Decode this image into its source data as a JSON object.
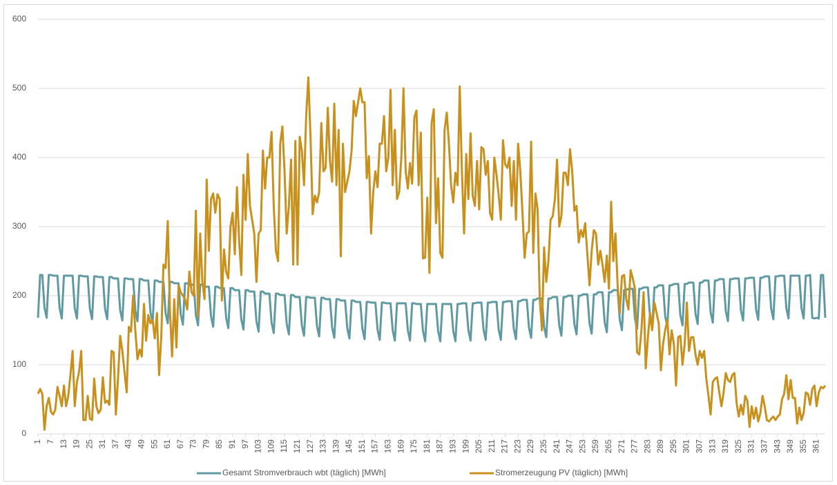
{
  "chart_data": {
    "type": "line",
    "x": [
      1,
      2,
      3,
      4,
      5,
      6,
      7,
      8,
      9,
      10,
      11,
      12,
      13,
      14,
      15,
      16,
      17,
      18,
      19,
      20,
      21,
      22,
      23,
      24,
      25,
      26,
      27,
      28,
      29,
      30,
      31,
      32,
      33,
      34,
      35,
      36,
      37,
      38,
      39,
      40,
      41,
      42,
      43,
      44,
      45,
      46,
      47,
      48,
      49,
      50,
      51,
      52,
      53,
      54,
      55,
      56,
      57,
      58,
      59,
      60,
      61,
      62,
      63,
      64,
      65,
      66,
      67,
      68,
      69,
      70,
      71,
      72,
      73,
      74,
      75,
      76,
      77,
      78,
      79,
      80,
      81,
      82,
      83,
      84,
      85,
      86,
      87,
      88,
      89,
      90,
      91,
      92,
      93,
      94,
      95,
      96,
      97,
      98,
      99,
      100,
      101,
      102,
      103,
      104,
      105,
      106,
      107,
      108,
      109,
      110,
      111,
      112,
      113,
      114,
      115,
      116,
      117,
      118,
      119,
      120,
      121,
      122,
      123,
      124,
      125,
      126,
      127,
      128,
      129,
      130,
      131,
      132,
      133,
      134,
      135,
      136,
      137,
      138,
      139,
      140,
      141,
      142,
      143,
      144,
      145,
      146,
      147,
      148,
      149,
      150,
      151,
      152,
      153,
      154,
      155,
      156,
      157,
      158,
      159,
      160,
      161,
      162,
      163,
      164,
      165,
      166,
      167,
      168,
      169,
      170,
      171,
      172,
      173,
      174,
      175,
      176,
      177,
      178,
      179,
      180,
      181,
      182,
      183,
      184,
      185,
      186,
      187,
      188,
      189,
      190,
      191,
      192,
      193,
      194,
      195,
      196,
      197,
      198,
      199,
      200,
      201,
      202,
      203,
      204,
      205,
      206,
      207,
      208,
      209,
      210,
      211,
      212,
      213,
      214,
      215,
      216,
      217,
      218,
      219,
      220,
      221,
      222,
      223,
      224,
      225,
      226,
      227,
      228,
      229,
      230,
      231,
      232,
      233,
      234,
      235,
      236,
      237,
      238,
      239,
      240,
      241,
      242,
      243,
      244,
      245,
      246,
      247,
      248,
      249,
      250,
      251,
      252,
      253,
      254,
      255,
      256,
      257,
      258,
      259,
      260,
      261,
      262,
      263,
      264,
      265,
      266,
      267,
      268,
      269,
      270,
      271,
      272,
      273,
      274,
      275,
      276,
      277,
      278,
      279,
      280,
      281,
      282,
      283,
      284,
      285,
      286,
      287,
      288,
      289,
      290,
      291,
      292,
      293,
      294,
      295,
      296,
      297,
      298,
      299,
      300,
      301,
      302,
      303,
      304,
      305,
      306,
      307,
      308,
      309,
      310,
      311,
      312,
      313,
      314,
      315,
      316,
      317,
      318,
      319,
      320,
      321,
      322,
      323,
      324,
      325,
      326,
      327,
      328,
      329,
      330,
      331,
      332,
      333,
      334,
      335,
      336,
      337,
      338,
      339,
      340,
      341,
      342,
      343,
      344,
      345,
      346,
      347,
      348,
      349,
      350,
      351,
      352,
      353,
      354,
      355,
      356,
      357,
      358,
      359,
      360,
      361,
      362,
      363,
      364,
      365
    ],
    "xlim": [
      1,
      365
    ],
    "xticks": [
      1,
      7,
      13,
      19,
      25,
      31,
      37,
      43,
      49,
      55,
      61,
      67,
      73,
      79,
      85,
      91,
      97,
      103,
      109,
      115,
      121,
      127,
      133,
      139,
      145,
      151,
      157,
      163,
      169,
      175,
      181,
      187,
      193,
      199,
      205,
      211,
      217,
      223,
      229,
      235,
      241,
      247,
      253,
      259,
      265,
      271,
      277,
      283,
      289,
      295,
      301,
      307,
      313,
      319,
      325,
      331,
      337,
      343,
      349,
      355,
      361
    ],
    "ylim": [
      0,
      600
    ],
    "yticks": [
      0,
      100,
      200,
      300,
      400,
      500,
      600
    ],
    "grid": true,
    "legend": "bottom",
    "series": [
      {
        "name": "Gesamt Stromverbrauch wbt (täglich) [MWh]",
        "color": "#5f9aa2",
        "values": [
          168,
          230,
          230,
          183,
          168,
          230,
          230,
          229,
          229,
          229,
          182,
          167,
          229,
          229,
          229,
          229,
          229,
          182,
          167,
          229,
          229,
          228,
          228,
          228,
          181,
          166,
          228,
          228,
          227,
          227,
          227,
          181,
          166,
          227,
          227,
          225,
          225,
          225,
          179,
          164,
          225,
          225,
          224,
          224,
          224,
          178,
          163,
          224,
          224,
          222,
          222,
          222,
          176,
          161,
          222,
          222,
          220,
          220,
          220,
          175,
          160,
          220,
          220,
          218,
          218,
          218,
          173,
          158,
          218,
          218,
          216,
          216,
          216,
          172,
          157,
          216,
          216,
          213,
          213,
          213,
          170,
          155,
          213,
          213,
          211,
          211,
          211,
          168,
          153,
          211,
          211,
          208,
          208,
          208,
          166,
          151,
          208,
          208,
          206,
          206,
          206,
          163,
          148,
          206,
          206,
          203,
          203,
          203,
          161,
          146,
          203,
          203,
          201,
          201,
          201,
          159,
          144,
          201,
          201,
          198,
          198,
          198,
          157,
          142,
          198,
          198,
          197,
          197,
          197,
          156,
          141,
          197,
          197,
          195,
          195,
          195,
          154,
          139,
          195,
          195,
          193,
          193,
          193,
          153,
          138,
          193,
          193,
          191,
          191,
          191,
          152,
          137,
          191,
          191,
          190,
          190,
          190,
          151,
          136,
          190,
          190,
          189,
          189,
          189,
          150,
          135,
          189,
          189,
          189,
          189,
          189,
          150,
          135,
          189,
          189,
          188,
          188,
          188,
          149,
          134,
          188,
          188,
          188,
          188,
          188,
          149,
          134,
          188,
          188,
          188,
          188,
          188,
          149,
          134,
          188,
          188,
          189,
          189,
          189,
          150,
          135,
          189,
          189,
          190,
          190,
          190,
          151,
          136,
          190,
          190,
          191,
          191,
          191,
          151,
          136,
          191,
          191,
          192,
          192,
          192,
          152,
          137,
          192,
          192,
          194,
          194,
          194,
          154,
          139,
          194,
          194,
          196,
          196,
          196,
          155,
          140,
          196,
          196,
          198,
          198,
          198,
          157,
          142,
          198,
          198,
          200,
          200,
          200,
          159,
          144,
          200,
          200,
          202,
          202,
          202,
          160,
          145,
          202,
          202,
          205,
          205,
          205,
          162,
          147,
          205,
          205,
          208,
          208,
          208,
          165,
          150,
          208,
          208,
          210,
          210,
          210,
          167,
          152,
          210,
          210,
          212,
          212,
          212,
          168,
          153,
          212,
          212,
          215,
          215,
          215,
          170,
          155,
          215,
          215,
          217,
          217,
          217,
          172,
          157,
          217,
          217,
          219,
          219,
          219,
          174,
          159,
          219,
          219,
          222,
          222,
          222,
          176,
          161,
          222,
          222,
          224,
          224,
          224,
          178,
          163,
          224,
          224,
          225,
          225,
          225,
          179,
          164,
          225,
          225,
          226,
          226,
          226,
          180,
          165,
          226,
          226,
          228,
          228,
          228,
          181,
          166,
          228,
          228,
          229,
          229,
          229,
          182,
          167,
          229,
          229,
          229,
          229,
          229,
          182,
          167,
          229,
          229,
          230,
          168,
          167,
          168,
          167,
          230,
          230,
          168
        ]
      },
      {
        "name": "Stromerzeugung PV (täglich) [MWh]",
        "color": "#c8901c",
        "values": [
          58,
          65,
          58,
          6,
          40,
          52,
          32,
          28,
          35,
          68,
          55,
          40,
          70,
          40,
          55,
          85,
          120,
          40,
          75,
          90,
          120,
          20,
          20,
          55,
          22,
          20,
          80,
          40,
          30,
          35,
          82,
          45,
          48,
          42,
          120,
          118,
          28,
          80,
          142,
          120,
          90,
          60,
          155,
          148,
          200,
          150,
          108,
          122,
          112,
          188,
          135,
          172,
          160,
          165,
          138,
          175,
          85,
          140,
          245,
          240,
          308,
          180,
          112,
          195,
          125,
          215,
          205,
          200,
          195,
          180,
          235,
          205,
          200,
          323,
          170,
          290,
          220,
          195,
          368,
          265,
          340,
          348,
          320,
          347,
          340,
          193,
          267,
          235,
          225,
          300,
          320,
          260,
          357,
          280,
          230,
          375,
          310,
          405,
          330,
          310,
          290,
          220,
          290,
          295,
          410,
          355,
          400,
          400,
          437,
          330,
          265,
          250,
          420,
          445,
          380,
          290,
          330,
          397,
          245,
          424,
          245,
          430,
          410,
          360,
          460,
          516,
          430,
          318,
          345,
          335,
          350,
          450,
          380,
          385,
          472,
          395,
          365,
          478,
          360,
          440,
          257,
          420,
          350,
          365,
          380,
          410,
          482,
          460,
          480,
          500,
          480,
          480,
          370,
          402,
          290,
          350,
          380,
          357,
          420,
          420,
          460,
          380,
          400,
          498,
          360,
          440,
          340,
          350,
          400,
          500,
          380,
          355,
          392,
          362,
          458,
          468,
          360,
          436,
          254,
          255,
          342,
          233,
          450,
          470,
          305,
          370,
          262,
          255,
          440,
          465,
          420,
          360,
          335,
          378,
          360,
          503,
          380,
          290,
          405,
          340,
          435,
          345,
          330,
          395,
          325,
          415,
          412,
          375,
          395,
          320,
          310,
          400,
          375,
          346,
          310,
          425,
          390,
          385,
          400,
          330,
          395,
          310,
          420,
          380,
          320,
          255,
          290,
          293,
          423,
          262,
          348,
          325,
          195,
          150,
          270,
          220,
          250,
          310,
          315,
          340,
          397,
          300,
          315,
          378,
          378,
          360,
          412,
          380,
          323,
          330,
          277,
          295,
          285,
          305,
          260,
          215,
          265,
          295,
          290,
          245,
          265,
          245,
          220,
          258,
          210,
          336,
          250,
          290,
          215,
          175,
          228,
          230,
          195,
          180,
          237,
          225,
          210,
          118,
          115,
          150,
          205,
          95,
          140,
          175,
          150,
          190,
          175,
          160,
          92,
          130,
          150,
          165,
          115,
          150,
          130,
          70,
          140,
          142,
          100,
          130,
          190,
          120,
          140,
          140,
          115,
          100,
          120,
          110,
          120,
          80,
          55,
          28,
          75,
          80,
          82,
          60,
          40,
          60,
          88,
          78,
          75,
          85,
          88,
          45,
          25,
          42,
          28,
          55,
          48,
          10,
          40,
          22,
          38,
          18,
          30,
          55,
          40,
          20,
          18,
          22,
          25,
          20,
          25,
          28,
          50,
          58,
          85,
          50,
          78,
          52,
          52,
          15,
          38,
          20,
          30,
          60,
          58,
          42,
          65,
          70,
          40,
          60,
          68,
          66,
          70
        ]
      }
    ]
  }
}
